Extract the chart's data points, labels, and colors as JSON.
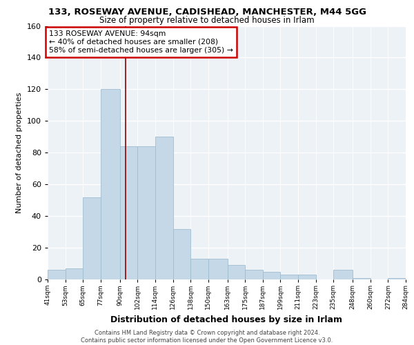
{
  "title_line1": "133, ROSEWAY AVENUE, CADISHEAD, MANCHESTER, M44 5GG",
  "title_line2": "Size of property relative to detached houses in Irlam",
  "xlabel": "Distribution of detached houses by size in Irlam",
  "ylabel": "Number of detached properties",
  "footer_line1": "Contains HM Land Registry data © Crown copyright and database right 2024.",
  "footer_line2": "Contains public sector information licensed under the Open Government Licence v3.0.",
  "annotation_line1": "133 ROSEWAY AVENUE: 94sqm",
  "annotation_line2": "← 40% of detached houses are smaller (208)",
  "annotation_line3": "58% of semi-detached houses are larger (305) →",
  "property_size_sqm": 94,
  "bar_edges": [
    41,
    53,
    65,
    77,
    90,
    102,
    114,
    126,
    138,
    150,
    163,
    175,
    187,
    199,
    211,
    223,
    235,
    248,
    260,
    272,
    284
  ],
  "bar_heights": [
    6,
    7,
    52,
    120,
    84,
    84,
    90,
    32,
    13,
    13,
    9,
    6,
    5,
    3,
    3,
    0,
    6,
    1,
    0,
    1
  ],
  "bar_color": "#c5d8e8",
  "bar_edge_color": "#a0bdd0",
  "vline_color": "#8b0000",
  "annotation_box_color": "#cc0000",
  "background_color": "#edf2f7",
  "grid_color": "#ffffff",
  "ylim": [
    0,
    160
  ],
  "tick_labels": [
    "41sqm",
    "53sqm",
    "65sqm",
    "77sqm",
    "90sqm",
    "102sqm",
    "114sqm",
    "126sqm",
    "138sqm",
    "150sqm",
    "163sqm",
    "175sqm",
    "187sqm",
    "199sqm",
    "211sqm",
    "223sqm",
    "235sqm",
    "248sqm",
    "260sqm",
    "272sqm",
    "284sqm"
  ]
}
